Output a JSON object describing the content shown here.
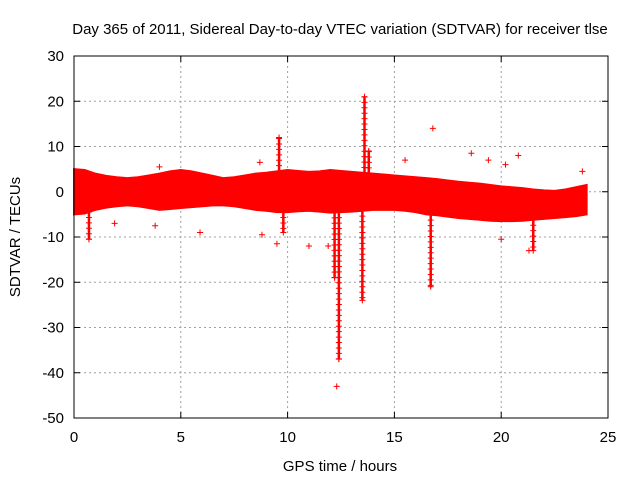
{
  "chart_data": {
    "type": "scatter",
    "title": "Day 365 of 2011, Sidereal Day-to-day VTEC variation (SDTVAR) for receiver tlse",
    "xlabel": "GPS time / hours",
    "ylabel": "SDTVAR / TECUs",
    "xlim": [
      0,
      25
    ],
    "ylim": [
      -50,
      30
    ],
    "xticks": [
      0,
      5,
      10,
      15,
      20,
      25
    ],
    "yticks": [
      -50,
      -40,
      -30,
      -20,
      -10,
      0,
      10,
      20,
      30
    ],
    "grid": true,
    "marker": "+",
    "color": "#ff0000",
    "series": [
      {
        "name": "SDTVAR",
        "band": {
          "x": [
            0.0,
            0.5,
            1.0,
            1.5,
            2.0,
            2.5,
            3.0,
            3.5,
            4.0,
            4.5,
            5.0,
            5.5,
            6.0,
            6.5,
            7.0,
            7.5,
            8.0,
            8.5,
            9.0,
            9.5,
            10.0,
            10.5,
            11.0,
            11.5,
            12.0,
            12.5,
            13.0,
            13.5,
            14.0,
            14.5,
            15.0,
            15.5,
            16.0,
            16.5,
            17.0,
            17.5,
            18.0,
            18.5,
            19.0,
            19.5,
            20.0,
            20.5,
            21.0,
            21.5,
            22.0,
            22.5,
            23.0,
            23.5,
            24.0
          ],
          "upper": [
            5.0,
            4.8,
            4.0,
            3.5,
            3.2,
            3.0,
            3.2,
            3.6,
            4.0,
            4.5,
            4.8,
            4.5,
            4.0,
            3.5,
            3.0,
            3.2,
            3.6,
            4.0,
            4.2,
            4.5,
            4.8,
            4.6,
            4.4,
            4.5,
            4.8,
            4.6,
            4.4,
            4.2,
            4.0,
            3.8,
            3.6,
            3.4,
            3.2,
            3.0,
            2.8,
            2.5,
            2.2,
            2.0,
            1.8,
            1.5,
            1.2,
            1.0,
            0.8,
            0.5,
            0.3,
            0.2,
            0.5,
            1.0,
            1.5
          ],
          "lower": [
            -5.0,
            -4.8,
            -4.0,
            -3.5,
            -3.2,
            -3.0,
            -3.2,
            -3.6,
            -4.0,
            -3.8,
            -3.6,
            -3.4,
            -3.2,
            -3.0,
            -3.0,
            -3.2,
            -3.6,
            -4.0,
            -4.2,
            -4.5,
            -4.5,
            -4.3,
            -4.2,
            -4.4,
            -4.6,
            -4.5,
            -4.4,
            -4.2,
            -4.0,
            -4.0,
            -4.0,
            -4.2,
            -4.5,
            -5.0,
            -5.2,
            -5.5,
            -5.8,
            -6.0,
            -6.2,
            -6.4,
            -6.5,
            -6.5,
            -6.4,
            -6.2,
            -6.0,
            -5.8,
            -5.6,
            -5.4,
            -5.0
          ]
        },
        "dips": [
          {
            "x": 0.7,
            "min": -10.5
          },
          {
            "x": 9.8,
            "min": -9.0
          },
          {
            "x": 12.2,
            "min": -19.0
          },
          {
            "x": 12.4,
            "min": -37.0
          },
          {
            "x": 13.5,
            "min": -24.0
          },
          {
            "x": 16.7,
            "min": -21.0
          },
          {
            "x": 21.5,
            "min": -13.0
          }
        ],
        "spikes": [
          {
            "x": 9.6,
            "max": 12.0
          },
          {
            "x": 13.6,
            "max": 21.0
          },
          {
            "x": 13.8,
            "max": 9.0
          }
        ],
        "outliers": [
          {
            "x": 12.3,
            "y": -43.0
          },
          {
            "x": 16.8,
            "y": 14.0
          },
          {
            "x": 18.6,
            "y": 8.5
          },
          {
            "x": 20.8,
            "y": 8.0
          },
          {
            "x": 19.4,
            "y": 7.0
          },
          {
            "x": 15.5,
            "y": 7.0
          },
          {
            "x": 8.7,
            "y": 6.5
          },
          {
            "x": 20.2,
            "y": 6.0
          },
          {
            "x": 9.5,
            "y": -11.5
          },
          {
            "x": 11.0,
            "y": -12.0
          },
          {
            "x": 8.8,
            "y": -9.5
          },
          {
            "x": 20.0,
            "y": -10.5
          },
          {
            "x": 21.3,
            "y": -13.0
          },
          {
            "x": 1.9,
            "y": -7.0
          },
          {
            "x": 3.8,
            "y": -7.5
          },
          {
            "x": 4.0,
            "y": 5.5
          },
          {
            "x": 5.9,
            "y": -9.0
          },
          {
            "x": 11.9,
            "y": -12.0
          },
          {
            "x": 23.8,
            "y": 4.5
          }
        ]
      }
    ]
  }
}
